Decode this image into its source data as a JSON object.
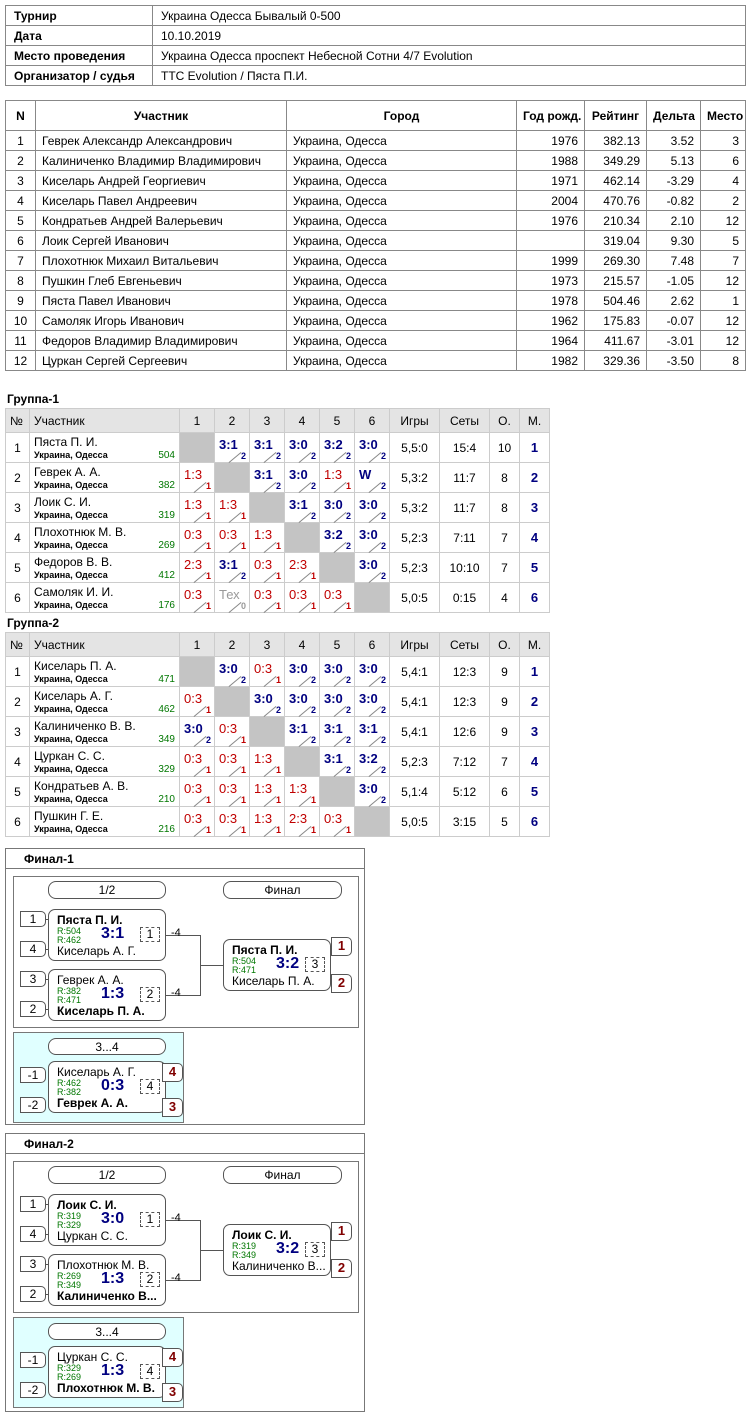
{
  "info": {
    "rows": [
      [
        "Турнир",
        "Украина Одесса Бывалый 0-500"
      ],
      [
        "Дата",
        "10.10.2019"
      ],
      [
        "Место проведения",
        "Украина Одесса проспект Небесной Сотни 4/7 Evolution"
      ],
      [
        "Организатор / судья",
        "TTC Evolution / Пяста П.И."
      ]
    ]
  },
  "participants": {
    "headers": [
      "N",
      "Участник",
      "Город",
      "Год рожд.",
      "Рейтинг",
      "Дельта",
      "Место"
    ],
    "rows": [
      [
        "1",
        "Геврек Александр Александрович",
        "Украина, Одесса",
        "1976",
        "382.13",
        "3.52",
        "3"
      ],
      [
        "2",
        "Калиниченко Владимир Владимирович",
        "Украина, Одесса",
        "1988",
        "349.29",
        "5.13",
        "6"
      ],
      [
        "3",
        "Киселарь Андрей Георгиевич",
        "Украина, Одесса",
        "1971",
        "462.14",
        "-3.29",
        "4"
      ],
      [
        "4",
        "Киселарь Павел Андреевич",
        "Украина, Одесса",
        "2004",
        "470.76",
        "-0.82",
        "2"
      ],
      [
        "5",
        "Кондратьев Андрей Валерьевич",
        "Украина, Одесса",
        "1976",
        "210.34",
        "2.10",
        "12"
      ],
      [
        "6",
        "Лоик Сергей Иванович",
        "Украина, Одесса",
        null,
        "319.04",
        "9.30",
        "5"
      ],
      [
        "7",
        "Плохотнюк Михаил Витальевич",
        "Украина, Одесса",
        "1999",
        "269.30",
        "7.48",
        "7"
      ],
      [
        "8",
        "Пушкин Глеб Евгеньевич",
        "Украина, Одесса",
        "1973",
        "215.57",
        "-1.05",
        "12"
      ],
      [
        "9",
        "Пяста Павел Иванович",
        "Украина, Одесса",
        "1978",
        "504.46",
        "2.62",
        "1"
      ],
      [
        "10",
        "Самоляк Игорь Иванович",
        "Украина, Одесса",
        "1962",
        "175.83",
        "-0.07",
        "12"
      ],
      [
        "11",
        "Федоров Владимир Владимирович",
        "Украина, Одесса",
        "1964",
        "411.67",
        "-3.01",
        "12"
      ],
      [
        "12",
        "Цуркан Сергей Сергеевич",
        "Украина, Одесса",
        "1982",
        "329.36",
        "-3.50",
        "8"
      ]
    ]
  },
  "groups": [
    {
      "title": "Группа-1",
      "headers": [
        "№",
        "Участник",
        "1",
        "2",
        "3",
        "4",
        "5",
        "6",
        "Игры",
        "Сеты",
        "О.",
        "М."
      ],
      "rows": [
        {
          "n": "1",
          "name": "Пяста П. И.",
          "city": "Украина, Одесса",
          "rating": "504",
          "results": [
            null,
            {
              "score": "3:1",
              "sub": "2"
            },
            {
              "score": "3:1",
              "sub": "2"
            },
            {
              "score": "3:0",
              "sub": "2"
            },
            {
              "score": "3:2",
              "sub": "2"
            },
            {
              "score": "3:0",
              "sub": "2"
            }
          ],
          "games": "5,5:0",
          "sets": "15:4",
          "points": "10",
          "place": "1"
        },
        {
          "n": "2",
          "name": "Геврек А. А.",
          "city": "Украина, Одесса",
          "rating": "382",
          "results": [
            {
              "score": "1:3",
              "sub": "1"
            },
            null,
            {
              "score": "3:1",
              "sub": "2"
            },
            {
              "score": "3:0",
              "sub": "2"
            },
            {
              "score": "1:3",
              "sub": "1"
            },
            {
              "score": "W",
              "sub": "2"
            }
          ],
          "games": "5,3:2",
          "sets": "11:7",
          "points": "8",
          "place": "2"
        },
        {
          "n": "3",
          "name": "Лоик С. И.",
          "city": "Украина, Одесса",
          "rating": "319",
          "results": [
            {
              "score": "1:3",
              "sub": "1"
            },
            {
              "score": "1:3",
              "sub": "1"
            },
            null,
            {
              "score": "3:1",
              "sub": "2"
            },
            {
              "score": "3:0",
              "sub": "2"
            },
            {
              "score": "3:0",
              "sub": "2"
            }
          ],
          "games": "5,3:2",
          "sets": "11:7",
          "points": "8",
          "place": "3"
        },
        {
          "n": "4",
          "name": "Плохотнюк М. В.",
          "city": "Украина, Одесса",
          "rating": "269",
          "results": [
            {
              "score": "0:3",
              "sub": "1"
            },
            {
              "score": "0:3",
              "sub": "1"
            },
            {
              "score": "1:3",
              "sub": "1"
            },
            null,
            {
              "score": "3:2",
              "sub": "2"
            },
            {
              "score": "3:0",
              "sub": "2"
            }
          ],
          "games": "5,2:3",
          "sets": "7:11",
          "points": "7",
          "place": "4"
        },
        {
          "n": "5",
          "name": "Федоров В. В.",
          "city": "Украина, Одесса",
          "rating": "412",
          "results": [
            {
              "score": "2:3",
              "sub": "1"
            },
            {
              "score": "3:1",
              "sub": "2"
            },
            {
              "score": "0:3",
              "sub": "1"
            },
            {
              "score": "2:3",
              "sub": "1"
            },
            null,
            {
              "score": "3:0",
              "sub": "2"
            }
          ],
          "games": "5,2:3",
          "sets": "10:10",
          "points": "7",
          "place": "5"
        },
        {
          "n": "6",
          "name": "Самоляк И. И.",
          "city": "Украина, Одесса",
          "rating": "176",
          "results": [
            {
              "score": "0:3",
              "sub": "1"
            },
            {
              "score": "Тех",
              "sub": "0"
            },
            {
              "score": "0:3",
              "sub": "1"
            },
            {
              "score": "0:3",
              "sub": "1"
            },
            {
              "score": "0:3",
              "sub": "1"
            },
            null
          ],
          "games": "5,0:5",
          "sets": "0:15",
          "points": "4",
          "place": "6"
        }
      ]
    },
    {
      "title": "Группа-2",
      "headers": [
        "№",
        "Участник",
        "1",
        "2",
        "3",
        "4",
        "5",
        "6",
        "Игры",
        "Сеты",
        "О.",
        "М."
      ],
      "rows": [
        {
          "n": "1",
          "name": "Киселарь П. А.",
          "city": "Украина, Одесса",
          "rating": "471",
          "results": [
            null,
            {
              "score": "3:0",
              "sub": "2"
            },
            {
              "score": "0:3",
              "sub": "1"
            },
            {
              "score": "3:0",
              "sub": "2"
            },
            {
              "score": "3:0",
              "sub": "2"
            },
            {
              "score": "3:0",
              "sub": "2"
            }
          ],
          "games": "5,4:1",
          "sets": "12:3",
          "points": "9",
          "place": "1"
        },
        {
          "n": "2",
          "name": "Киселарь А. Г.",
          "city": "Украина, Одесса",
          "rating": "462",
          "results": [
            {
              "score": "0:3",
              "sub": "1"
            },
            null,
            {
              "score": "3:0",
              "sub": "2"
            },
            {
              "score": "3:0",
              "sub": "2"
            },
            {
              "score": "3:0",
              "sub": "2"
            },
            {
              "score": "3:0",
              "sub": "2"
            }
          ],
          "games": "5,4:1",
          "sets": "12:3",
          "points": "9",
          "place": "2"
        },
        {
          "n": "3",
          "name": "Калиниченко В. В.",
          "city": "Украина, Одесса",
          "rating": "349",
          "results": [
            {
              "score": "3:0",
              "sub": "2"
            },
            {
              "score": "0:3",
              "sub": "1"
            },
            null,
            {
              "score": "3:1",
              "sub": "2"
            },
            {
              "score": "3:1",
              "sub": "2"
            },
            {
              "score": "3:1",
              "sub": "2"
            }
          ],
          "games": "5,4:1",
          "sets": "12:6",
          "points": "9",
          "place": "3"
        },
        {
          "n": "4",
          "name": "Цуркан С. С.",
          "city": "Украина, Одесса",
          "rating": "329",
          "results": [
            {
              "score": "0:3",
              "sub": "1"
            },
            {
              "score": "0:3",
              "sub": "1"
            },
            {
              "score": "1:3",
              "sub": "1"
            },
            null,
            {
              "score": "3:1",
              "sub": "2"
            },
            {
              "score": "3:2",
              "sub": "2"
            }
          ],
          "games": "5,2:3",
          "sets": "7:12",
          "points": "7",
          "place": "4"
        },
        {
          "n": "5",
          "name": "Кондратьев А. В.",
          "city": "Украина, Одесса",
          "rating": "210",
          "results": [
            {
              "score": "0:3",
              "sub": "1"
            },
            {
              "score": "0:3",
              "sub": "1"
            },
            {
              "score": "1:3",
              "sub": "1"
            },
            {
              "score": "1:3",
              "sub": "1"
            },
            null,
            {
              "score": "3:0",
              "sub": "2"
            }
          ],
          "games": "5,1:4",
          "sets": "5:12",
          "points": "6",
          "place": "5"
        },
        {
          "n": "6",
          "name": "Пушкин Г. Е.",
          "city": "Украина, Одесса",
          "rating": "216",
          "results": [
            {
              "score": "0:3",
              "sub": "1"
            },
            {
              "score": "0:3",
              "sub": "1"
            },
            {
              "score": "1:3",
              "sub": "1"
            },
            {
              "score": "2:3",
              "sub": "1"
            },
            {
              "score": "0:3",
              "sub": "1"
            },
            null
          ],
          "games": "5,0:5",
          "sets": "3:15",
          "points": "5",
          "place": "6"
        }
      ]
    }
  ],
  "finals": [
    {
      "title": "Финал-1",
      "semi_header": "1/2",
      "final_header": "Финал",
      "third_header": "3...4",
      "semis": [
        {
          "seeds": [
            "1",
            "4"
          ],
          "top": {
            "name": "Пяста П. И.",
            "rating": "R:504"
          },
          "bottom": {
            "name": "Киселарь А. Г.",
            "rating": "R:462"
          },
          "score": "3:1",
          "number": "1",
          "next": "-4"
        },
        {
          "seeds": [
            "3",
            "2"
          ],
          "top": {
            "name": "Геврек А. А.",
            "rating": "R:382"
          },
          "bottom": {
            "name": "Киселарь П. А.",
            "rating": "R:471"
          },
          "score": "1:3",
          "number": "2",
          "next": "-4"
        }
      ],
      "final": {
        "places": [
          "1",
          "2"
        ],
        "top": {
          "name": "Пяста П. И.",
          "rating": "R:504"
        },
        "bottom": {
          "name": "Киселарь П. А.",
          "rating": "R:471"
        },
        "score": "3:2",
        "number": "3"
      },
      "third": {
        "seeds": [
          "-1",
          "-2"
        ],
        "places": [
          "4",
          "3"
        ],
        "top": {
          "name": "Киселарь А. Г.",
          "rating": "R:462"
        },
        "bottom": {
          "name": "Геврек А. А.",
          "rating": "R:382"
        },
        "score": "0:3",
        "number": "4"
      }
    },
    {
      "title": "Финал-2",
      "semi_header": "1/2",
      "final_header": "Финал",
      "third_header": "3...4",
      "semis": [
        {
          "seeds": [
            "1",
            "4"
          ],
          "top": {
            "name": "Лоик С. И.",
            "rating": "R:319"
          },
          "bottom": {
            "name": "Цуркан С. С.",
            "rating": "R:329"
          },
          "score": "3:0",
          "number": "1",
          "next": "-4"
        },
        {
          "seeds": [
            "3",
            "2"
          ],
          "top": {
            "name": "Плохотнюк М. В.",
            "rating": "R:269"
          },
          "bottom": {
            "name": "Калиниченко В...",
            "rating": "R:349"
          },
          "score": "1:3",
          "number": "2",
          "next": "-4"
        }
      ],
      "final": {
        "places": [
          "1",
          "2"
        ],
        "top": {
          "name": "Лоик С. И.",
          "rating": "R:319"
        },
        "bottom": {
          "name": "Калиниченко В...",
          "rating": "R:349"
        },
        "score": "3:2",
        "number": "3"
      },
      "third": {
        "seeds": [
          "-1",
          "-2"
        ],
        "places": [
          "4",
          "3"
        ],
        "top": {
          "name": "Цуркан С. С.",
          "rating": "R:329"
        },
        "bottom": {
          "name": "Плохотнюк М. В.",
          "rating": "R:269"
        },
        "score": "1:3",
        "number": "4"
      }
    }
  ]
}
